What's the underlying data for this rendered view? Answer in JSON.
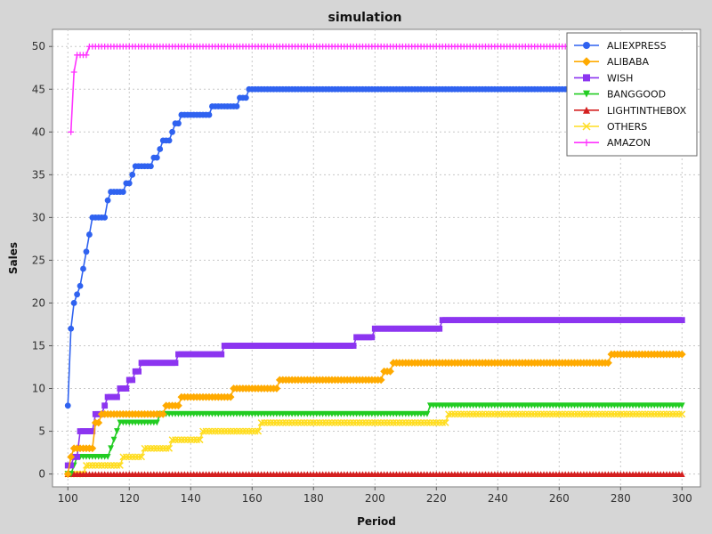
{
  "chart_data": {
    "type": "line",
    "title": "simulation",
    "xlabel": "Period",
    "ylabel": "Sales",
    "xlim": [
      95,
      306
    ],
    "ylim": [
      -1.5,
      52
    ],
    "x_ticks": [
      100,
      120,
      140,
      160,
      180,
      200,
      220,
      240,
      260,
      280,
      300
    ],
    "y_ticks": [
      0,
      5,
      10,
      15,
      20,
      25,
      30,
      35,
      40,
      45,
      50
    ],
    "grid": true,
    "legend_position": "top-right",
    "plot_background": "#ffffff",
    "figure_background": "#d6d6d6",
    "x": {
      "start": 100,
      "end": 300,
      "step": 1
    },
    "series": [
      {
        "name": "ALIEXPRESS",
        "color": "#2f62f0",
        "marker": "circle",
        "steps": [
          [
            100,
            8
          ],
          [
            101,
            17
          ],
          [
            102,
            20
          ],
          [
            103,
            21
          ],
          [
            104,
            22
          ],
          [
            105,
            24
          ],
          [
            106,
            26
          ],
          [
            107,
            28
          ],
          [
            108,
            30
          ],
          [
            113,
            32
          ],
          [
            114,
            33
          ],
          [
            119,
            34
          ],
          [
            121,
            35
          ],
          [
            122,
            36
          ],
          [
            128,
            37
          ],
          [
            130,
            38
          ],
          [
            131,
            39
          ],
          [
            134,
            40
          ],
          [
            135,
            41
          ],
          [
            137,
            42
          ],
          [
            147,
            43
          ],
          [
            156,
            44
          ],
          [
            159,
            45
          ]
        ]
      },
      {
        "name": "ALIBABA",
        "color": "#ffaa00",
        "marker": "diamond",
        "steps": [
          [
            100,
            0
          ],
          [
            101,
            2
          ],
          [
            102,
            3
          ],
          [
            109,
            6
          ],
          [
            111,
            7
          ],
          [
            132,
            8
          ],
          [
            137,
            9
          ],
          [
            154,
            10
          ],
          [
            169,
            11
          ],
          [
            203,
            12
          ],
          [
            206,
            13
          ],
          [
            277,
            14
          ]
        ]
      },
      {
        "name": "WISH",
        "color": "#8c35f0",
        "marker": "square",
        "steps": [
          [
            100,
            1
          ],
          [
            102,
            2
          ],
          [
            104,
            5
          ],
          [
            109,
            7
          ],
          [
            112,
            8
          ],
          [
            113,
            9
          ],
          [
            117,
            10
          ],
          [
            120,
            11
          ],
          [
            122,
            12
          ],
          [
            124,
            13
          ],
          [
            136,
            14
          ],
          [
            151,
            15
          ],
          [
            194,
            16
          ],
          [
            200,
            17
          ],
          [
            222,
            18
          ]
        ]
      },
      {
        "name": "BANGGOOD",
        "color": "#22cc22",
        "marker": "triangle-down",
        "steps": [
          [
            100,
            0
          ],
          [
            102,
            1
          ],
          [
            103,
            2
          ],
          [
            114,
            3
          ],
          [
            115,
            4
          ],
          [
            116,
            5
          ],
          [
            117,
            6
          ],
          [
            130,
            7
          ],
          [
            218,
            8
          ]
        ]
      },
      {
        "name": "LIGHTINTHEBOX",
        "color": "#d42020",
        "marker": "triangle-up",
        "steps": [
          [
            100,
            0
          ]
        ]
      },
      {
        "name": "OTHERS",
        "color": "#ffdd22",
        "marker": "cross",
        "steps": [
          [
            100,
            0
          ],
          [
            106,
            1
          ],
          [
            118,
            2
          ],
          [
            125,
            3
          ],
          [
            134,
            4
          ],
          [
            144,
            5
          ],
          [
            163,
            6
          ],
          [
            224,
            7
          ]
        ]
      },
      {
        "name": "AMAZON",
        "color": "#ff33ff",
        "marker": "plus",
        "steps": [
          [
            101,
            40
          ],
          [
            102,
            47
          ],
          [
            103,
            49
          ],
          [
            107,
            50
          ]
        ]
      }
    ]
  }
}
